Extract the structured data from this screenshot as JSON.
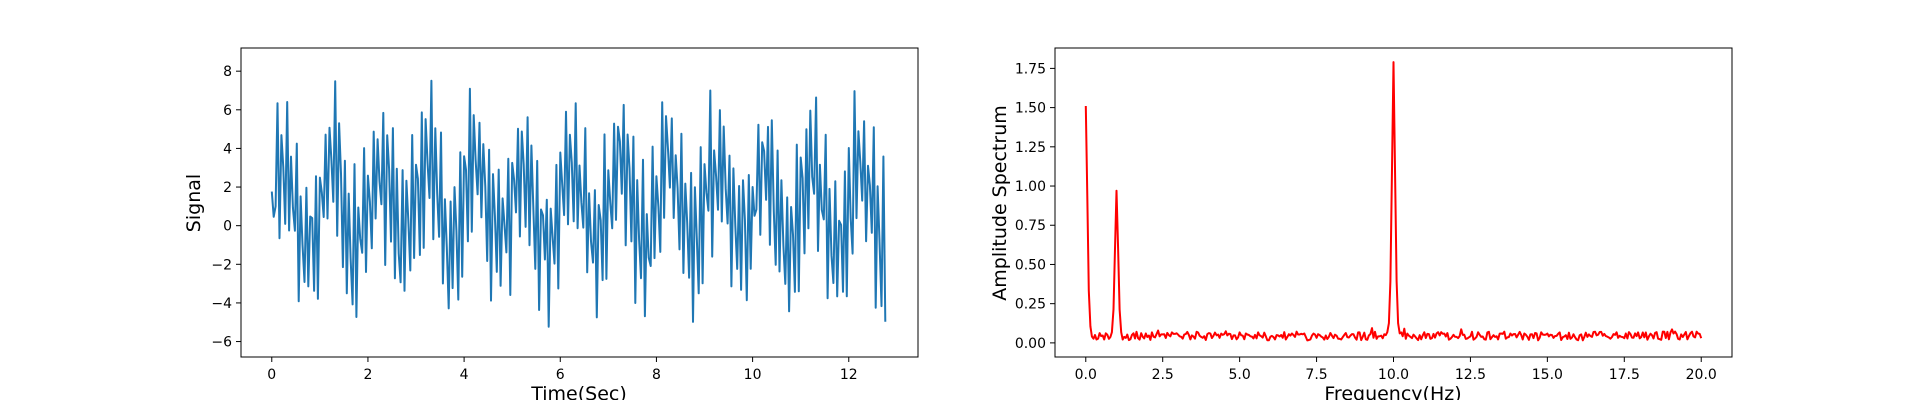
{
  "chart_data": [
    {
      "type": "line",
      "title": "",
      "xlabel": "Time(Sec)",
      "ylabel": "Signal",
      "xlim": [
        -0.64,
        13.44
      ],
      "ylim": [
        -6.8,
        9.2
      ],
      "xticks": [
        0,
        2,
        4,
        6,
        8,
        10,
        12
      ],
      "xtick_labels": [
        "0",
        "2",
        "4",
        "6",
        "8",
        "10",
        "12"
      ],
      "yticks": [
        -6,
        -4,
        -2,
        0,
        2,
        4,
        6,
        8
      ],
      "ytick_labels": [
        "−6",
        "−4",
        "−2",
        "0",
        "2",
        "4",
        "6",
        "8"
      ],
      "grid": false,
      "color": "#1f77b4",
      "series": [
        {
          "x_start": 0,
          "x_end": 12.8,
          "sample_count": 320,
          "min": -5.9,
          "max": 8.4,
          "note_components": "sum of sinusoids (≈1 Hz, ≈10 Hz) plus noise"
        }
      ]
    },
    {
      "type": "line",
      "title": "",
      "xlabel": "Frequency(Hz)",
      "ylabel": "Amplitude Spectrum",
      "xlim": [
        -1.0,
        21.0
      ],
      "ylim": [
        -0.09,
        1.88
      ],
      "xticks": [
        0.0,
        2.5,
        5.0,
        7.5,
        10.0,
        12.5,
        15.0,
        17.5,
        20.0
      ],
      "xtick_labels": [
        "0.0",
        "2.5",
        "5.0",
        "7.5",
        "10.0",
        "12.5",
        "15.0",
        "17.5",
        "20.0"
      ],
      "yticks": [
        0.0,
        0.25,
        0.5,
        0.75,
        1.0,
        1.25,
        1.5,
        1.75
      ],
      "ytick_labels": [
        "0.00",
        "0.25",
        "0.50",
        "0.75",
        "1.00",
        "1.25",
        "1.50",
        "1.75"
      ],
      "grid": false,
      "color": "#ff0000",
      "series": [
        {
          "x_start": 0,
          "x_end": 20,
          "peaks": [
            {
              "x": 0.0,
              "y": 1.51
            },
            {
              "x": 1.0,
              "y": 0.97
            },
            {
              "x": 10.0,
              "y": 1.79
            }
          ],
          "noise_floor": 0.04
        }
      ]
    }
  ]
}
